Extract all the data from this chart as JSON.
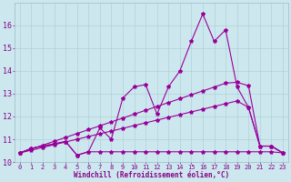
{
  "xlabel": "Windchill (Refroidissement éolien,°C)",
  "bg_color": "#cce8ee",
  "line_color": "#990099",
  "x_values": [
    0,
    1,
    2,
    3,
    4,
    5,
    6,
    7,
    8,
    9,
    10,
    11,
    12,
    13,
    14,
    15,
    16,
    17,
    18,
    19,
    20,
    21,
    22,
    23
  ],
  "s1": [
    10.4,
    10.6,
    10.7,
    10.8,
    10.9,
    10.3,
    10.45,
    10.45,
    10.45,
    10.45,
    10.45,
    10.45,
    10.45,
    10.45,
    10.45,
    10.45,
    10.45,
    10.45,
    10.45,
    10.45,
    10.45,
    10.45,
    10.45,
    10.4
  ],
  "s2": [
    10.4,
    10.6,
    10.7,
    10.8,
    10.9,
    10.3,
    10.45,
    11.5,
    11.0,
    12.8,
    13.3,
    13.4,
    12.1,
    13.3,
    14.0,
    15.3,
    16.5,
    15.3,
    15.8,
    13.3,
    12.4,
    10.7,
    10.7,
    10.4
  ],
  "s3": [
    10.4,
    10.52,
    10.64,
    10.76,
    10.88,
    11.0,
    11.12,
    11.24,
    11.36,
    11.48,
    11.6,
    11.72,
    11.84,
    11.96,
    12.08,
    12.2,
    12.32,
    12.44,
    12.56,
    12.68,
    12.4,
    10.7,
    10.7,
    10.4
  ],
  "s4": [
    10.4,
    10.57,
    10.74,
    10.91,
    11.08,
    11.25,
    11.42,
    11.59,
    11.76,
    11.93,
    12.1,
    12.27,
    12.44,
    12.61,
    12.78,
    12.95,
    13.12,
    13.29,
    13.46,
    13.5,
    13.35,
    10.7,
    10.7,
    10.4
  ],
  "ylim": [
    10.0,
    17.0
  ],
  "xlim": [
    -0.5,
    23.5
  ],
  "yticks": [
    10,
    11,
    12,
    13,
    14,
    15,
    16
  ],
  "xticks": [
    0,
    1,
    2,
    3,
    4,
    5,
    6,
    7,
    8,
    9,
    10,
    11,
    12,
    13,
    14,
    15,
    16,
    17,
    18,
    19,
    20,
    21,
    22,
    23
  ],
  "grid_color": "#b0d0d8",
  "tick_label_color": "#880088",
  "xlabel_color": "#880088",
  "xlabel_fontsize": 5.5,
  "tick_fontsize": 5.0,
  "linewidth": 0.8,
  "markersize": 3.0
}
